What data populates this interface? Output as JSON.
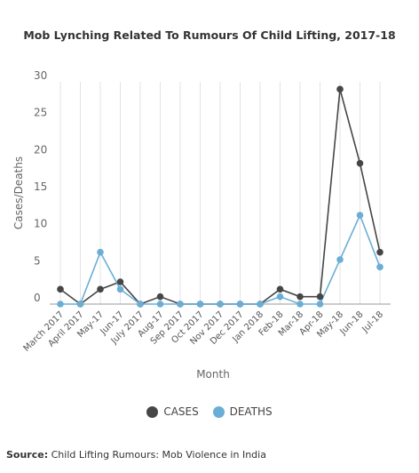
{
  "chart_data": {
    "type": "line",
    "title": "Mob Lynching Related To Rumours Of Child Lifting, 2017-18",
    "xlabel": "Month",
    "ylabel": "Cases/Deaths",
    "ylim": [
      0,
      30
    ],
    "yticks": [
      0,
      5,
      10,
      15,
      20,
      25,
      30
    ],
    "grid": "vertical",
    "legend_position": "bottom",
    "categories": [
      "March 2017",
      "April 2017",
      "May-17",
      "Jun-17",
      "July 2017",
      "Aug-17",
      "Sep 2017",
      "Oct 2017",
      "Nov 2017",
      "Dec 2017",
      "Jan 2018",
      "Feb-18",
      "Mar-18",
      "Apr-18",
      "May-18",
      "Jun-18",
      "Jul-18"
    ],
    "series": [
      {
        "name": "CASES",
        "color": "#464646",
        "values": [
          2,
          0,
          2,
          3,
          0,
          1,
          0,
          0,
          0,
          0,
          0,
          2,
          1,
          1,
          29,
          19,
          7
        ]
      },
      {
        "name": "DEATHS",
        "color": "#6aaed6",
        "values": [
          0,
          0,
          7,
          2,
          0,
          0,
          0,
          0,
          0,
          0,
          0,
          1,
          0,
          0,
          6,
          12,
          5
        ]
      }
    ]
  },
  "source": {
    "label": "Source:",
    "text": "Child Lifting Rumours: Mob Violence in India"
  }
}
